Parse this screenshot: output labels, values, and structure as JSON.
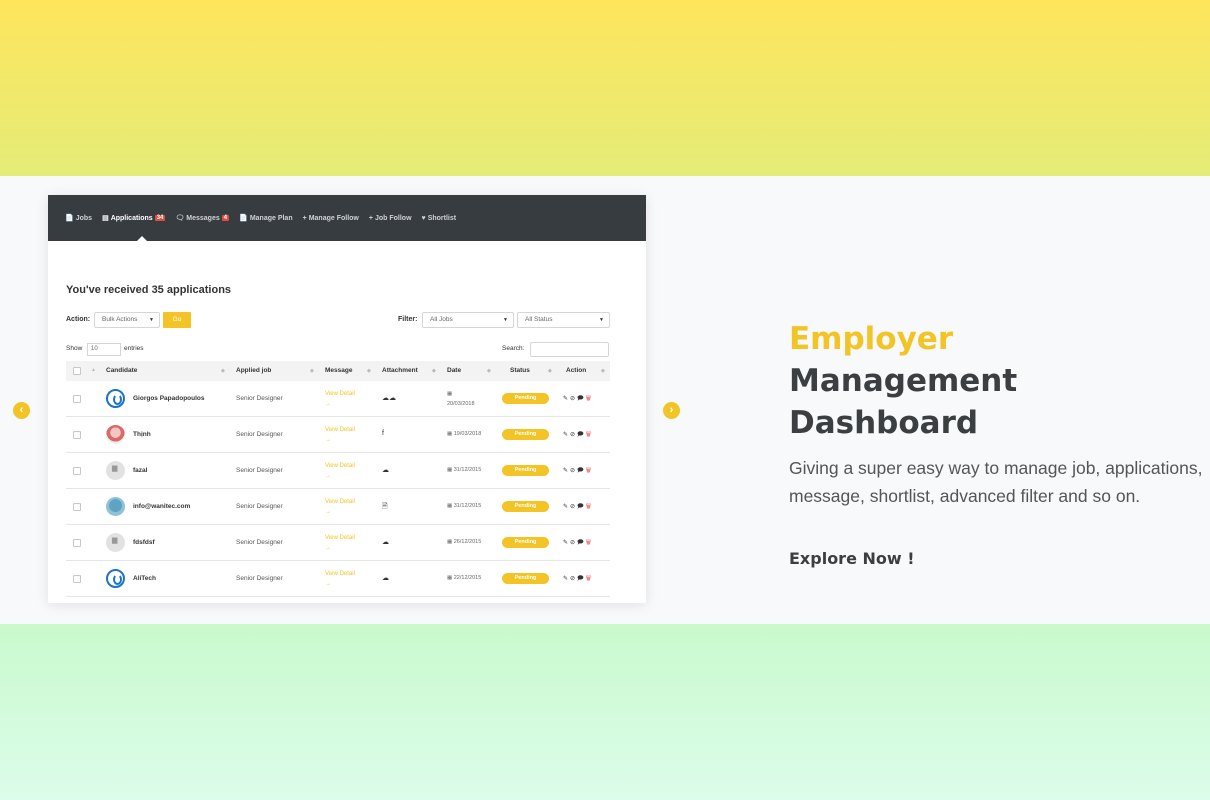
{
  "nav": {
    "items": [
      {
        "icon": "📄",
        "label": "Jobs",
        "badge": ""
      },
      {
        "icon": "▤",
        "label": "Applications",
        "badge": "34"
      },
      {
        "icon": "🗨",
        "label": "Messages",
        "badge": "4"
      },
      {
        "icon": "📄",
        "label": "Manage Plan",
        "badge": ""
      },
      {
        "icon": "+",
        "label": "Manage Follow",
        "badge": ""
      },
      {
        "icon": "+",
        "label": "Job Follow",
        "badge": ""
      },
      {
        "icon": "♥",
        "label": "Shortlist",
        "badge": ""
      }
    ]
  },
  "panel": {
    "title": "You've received 35 applications",
    "action_label": "Action:",
    "bulk_actions": "Bulk Actions",
    "go": "Go",
    "filter_label": "Filter:",
    "all_jobs": "All Jobs",
    "all_status": "All Status",
    "show_label": "Show",
    "show_value": "10",
    "entries_label": "entries",
    "search_label": "Search:"
  },
  "table": {
    "columns": [
      "Candidate",
      "Applied job",
      "Message",
      "Attachment",
      "Date",
      "Status",
      "Action"
    ],
    "rows": [
      {
        "avatar": "logo",
        "candidate": "Giorgos Papadopoulos",
        "job": "Senior Designer",
        "message": "View Detail",
        "arrow": "→",
        "attachment": "☁☁",
        "date": "20/03/2018",
        "date_icon": "▦",
        "status": "Pending"
      },
      {
        "avatar": "photo",
        "candidate": "Thịnh",
        "job": "Senior Designer",
        "message": "View Detail",
        "arrow": "→",
        "attachment": "f",
        "date": "19/03/2018",
        "date_icon": "▦",
        "status": "Pending"
      },
      {
        "avatar": "gray",
        "candidate": "fazal",
        "job": "Senior Designer",
        "message": "View Detail",
        "arrow": "→",
        "attachment": "☁",
        "date": "31/12/2015",
        "date_icon": "▦",
        "status": "Pending"
      },
      {
        "avatar": "photo2",
        "candidate": "info@wanitec.com",
        "job": "Senior Designer",
        "message": "View Detail",
        "arrow": "→",
        "attachment": "🗎",
        "date": "31/12/2015",
        "date_icon": "▦",
        "status": "Pending"
      },
      {
        "avatar": "gray",
        "candidate": "fdsfdsf",
        "job": "Senior Designer",
        "message": "View Detail",
        "arrow": "→",
        "attachment": "☁",
        "date": "26/12/2015",
        "date_icon": "▦",
        "status": "Pending"
      },
      {
        "avatar": "logo",
        "candidate": "AliTech",
        "job": "Senior Designer",
        "message": "View Detail",
        "arrow": "→",
        "attachment": "☁",
        "date": "22/12/2015",
        "date_icon": "▦",
        "status": "Pending"
      }
    ],
    "action_icons": "✎⊘🗩",
    "delete_icon": "🗑"
  },
  "hero": {
    "accent": "Employer",
    "line2": "Management",
    "line3": "Dashboard",
    "description": "Giving a super easy way to manage job, applications, message, shortlist, advanced filter and so on.",
    "cta": "Explore Now !"
  },
  "carousel": {
    "prev": "‹",
    "next": "›"
  },
  "colors": {
    "accent": "#f2c425",
    "dark": "#373c41",
    "badge": "#e34b3d"
  }
}
